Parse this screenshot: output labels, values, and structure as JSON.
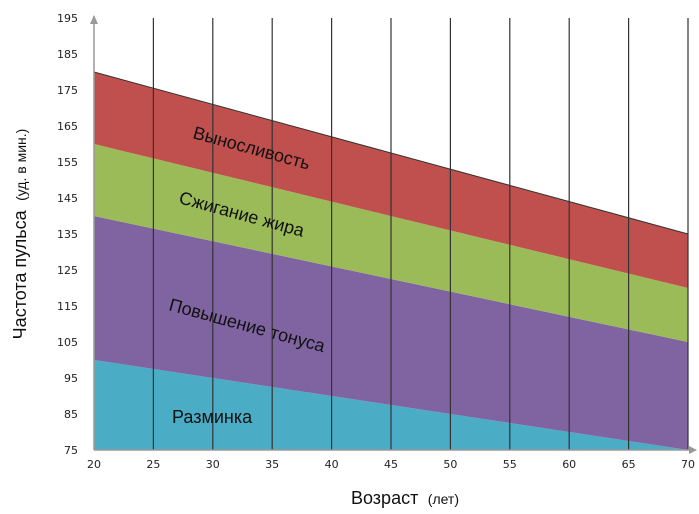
{
  "chart_data": {
    "type": "area",
    "x": [
      20,
      70
    ],
    "xlim": [
      20,
      70
    ],
    "ylim": [
      75,
      195
    ],
    "xticks": [
      20,
      25,
      30,
      35,
      40,
      45,
      50,
      55,
      60,
      65,
      70
    ],
    "yticks": [
      75,
      85,
      95,
      105,
      115,
      125,
      135,
      145,
      155,
      165,
      175,
      185,
      195
    ],
    "xlabel": "Возраст",
    "xlabel_unit": "(лет)",
    "ylabel": "Частота пульса",
    "ylabel_unit": "(уд. в мин.)",
    "grid": "vertical",
    "bands": [
      {
        "name": "Разминка",
        "color": "#4bacc6",
        "lower": [
          75,
          75
        ],
        "upper": [
          100,
          75
        ]
      },
      {
        "name": "Повышение тонуса",
        "color": "#8064a2",
        "lower": [
          100,
          75
        ],
        "upper": [
          140,
          105
        ]
      },
      {
        "name": "Сжигание жира",
        "color": "#9bbb59",
        "lower": [
          140,
          105
        ],
        "upper": [
          160,
          120
        ]
      },
      {
        "name": "Выносливость",
        "color": "#c0504d",
        "lower": [
          160,
          120
        ],
        "upper": [
          180,
          135
        ]
      }
    ]
  }
}
